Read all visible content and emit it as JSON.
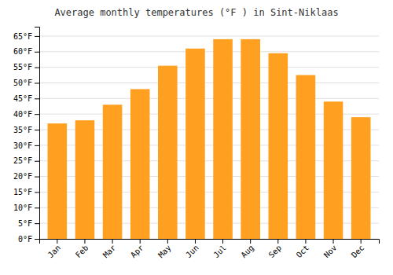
{
  "chart_data": {
    "type": "bar",
    "title": "Average monthly temperatures (°F ) in Sint-Niklaas",
    "categories": [
      "Jan",
      "Feb",
      "Mar",
      "Apr",
      "May",
      "Jun",
      "Jul",
      "Aug",
      "Sep",
      "Oct",
      "Nov",
      "Dec"
    ],
    "values": [
      37,
      38,
      43,
      48,
      55.5,
      61,
      64,
      64,
      59.5,
      52.5,
      44,
      39
    ],
    "color": "#FFA020",
    "ylim": [
      0,
      68
    ],
    "yticks": [
      {
        "value": 0,
        "label": "0°F"
      },
      {
        "value": 5,
        "label": "5°F"
      },
      {
        "value": 10,
        "label": "10°F"
      },
      {
        "value": 15,
        "label": "15°F"
      },
      {
        "value": 20,
        "label": "20°F"
      },
      {
        "value": 25,
        "label": "25°F"
      },
      {
        "value": 30,
        "label": "30°F"
      },
      {
        "value": 35,
        "label": "35°F"
      },
      {
        "value": 40,
        "label": "40°F"
      },
      {
        "value": 45,
        "label": "45°F"
      },
      {
        "value": 50,
        "label": "50°F"
      },
      {
        "value": 55,
        "label": "55°F"
      },
      {
        "value": 60,
        "label": "60°F"
      },
      {
        "value": 65,
        "label": "65°F"
      }
    ],
    "grid": true
  }
}
